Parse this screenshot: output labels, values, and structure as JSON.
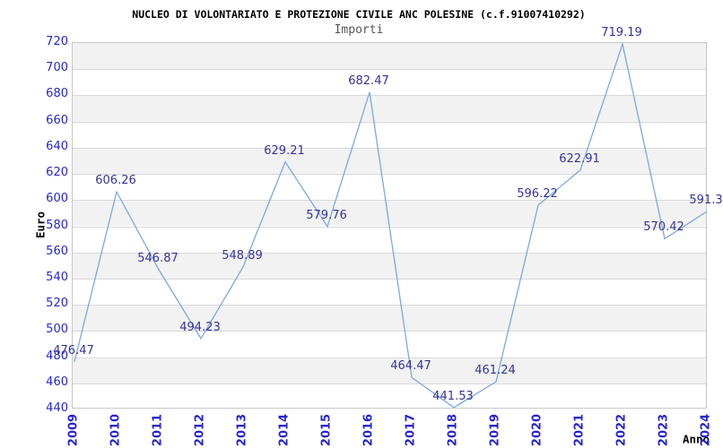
{
  "chart_data": {
    "type": "line",
    "title": "NUCLEO DI VOLONTARIATO E PROTEZIONE CIVILE ANC POLESINE (c.f.91007410292)",
    "subtitle": "Importi",
    "xlabel": "Anno",
    "ylabel": "Euro",
    "categories": [
      "2009",
      "2010",
      "2011",
      "2012",
      "2013",
      "2014",
      "2015",
      "2016",
      "2017",
      "2018",
      "2019",
      "2020",
      "2021",
      "2022",
      "2023",
      "2024"
    ],
    "values": [
      476.47,
      606.26,
      546.87,
      494.23,
      548.89,
      629.21,
      579.76,
      682.47,
      464.47,
      441.53,
      461.24,
      596.22,
      622.91,
      719.19,
      570.42,
      591.3
    ],
    "value_labels": [
      "476.47",
      "606.26",
      "546.87",
      "494.23",
      "548.89",
      "629.21",
      "579.76",
      "682.47",
      "464.47",
      "441.53",
      "461.24",
      "596.22",
      "622.91",
      "719.19",
      "570.42",
      "591.3"
    ],
    "ylim": [
      440,
      720
    ],
    "ytick_step": 20,
    "yticks": [
      "720",
      "700",
      "680",
      "660",
      "640",
      "620",
      "600",
      "580",
      "560",
      "540",
      "520",
      "500",
      "480",
      "460",
      "440"
    ],
    "legend": "none",
    "grid": "horizontal gridlines with alternating gray bands",
    "colors": {
      "line": "#7aa9e0",
      "point_label": "#333399",
      "tick_label": "#2626cc",
      "band": "#f2f2f2",
      "gridline": "#d9d9d9",
      "title": "#000000",
      "subtitle": "#555555"
    }
  }
}
